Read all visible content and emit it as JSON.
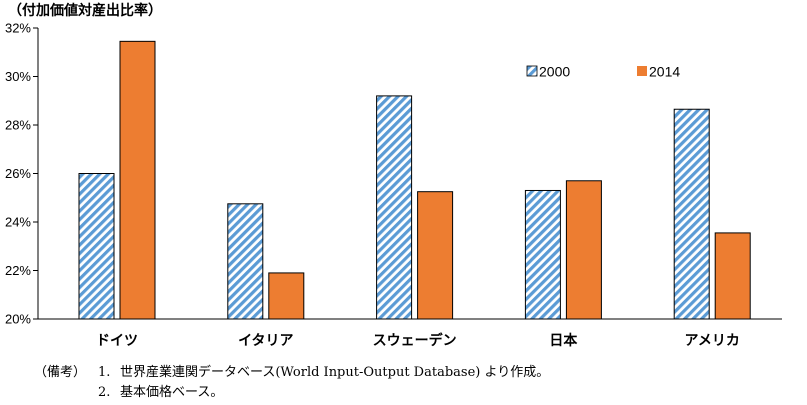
{
  "chart_data": {
    "type": "bar",
    "unit_label": "（付加価値対産出比率）",
    "categories": [
      "ドイツ",
      "イタリア",
      "スウェーデン",
      "日本",
      "アメリカ"
    ],
    "series": [
      {
        "name": "2000",
        "values": [
          26.0,
          24.75,
          29.2,
          25.3,
          28.65
        ],
        "color": "#9dc3e6",
        "pattern": "diagonal-hatch"
      },
      {
        "name": "2014",
        "values": [
          31.45,
          21.9,
          25.25,
          25.7,
          23.55
        ],
        "color": "#ed7d31"
      }
    ],
    "ylim": [
      20,
      32
    ],
    "yticks": [
      "20%",
      "22%",
      "24%",
      "26%",
      "28%",
      "30%",
      "32%"
    ],
    "legend_position": "top-right",
    "grid": false
  },
  "notes": {
    "lead": "（備考）",
    "items": [
      {
        "num": "1.",
        "text": "世界産業連関データベース(World Input-Output Database) より作成。"
      },
      {
        "num": "2.",
        "text": "基本価格ベース。"
      }
    ]
  }
}
